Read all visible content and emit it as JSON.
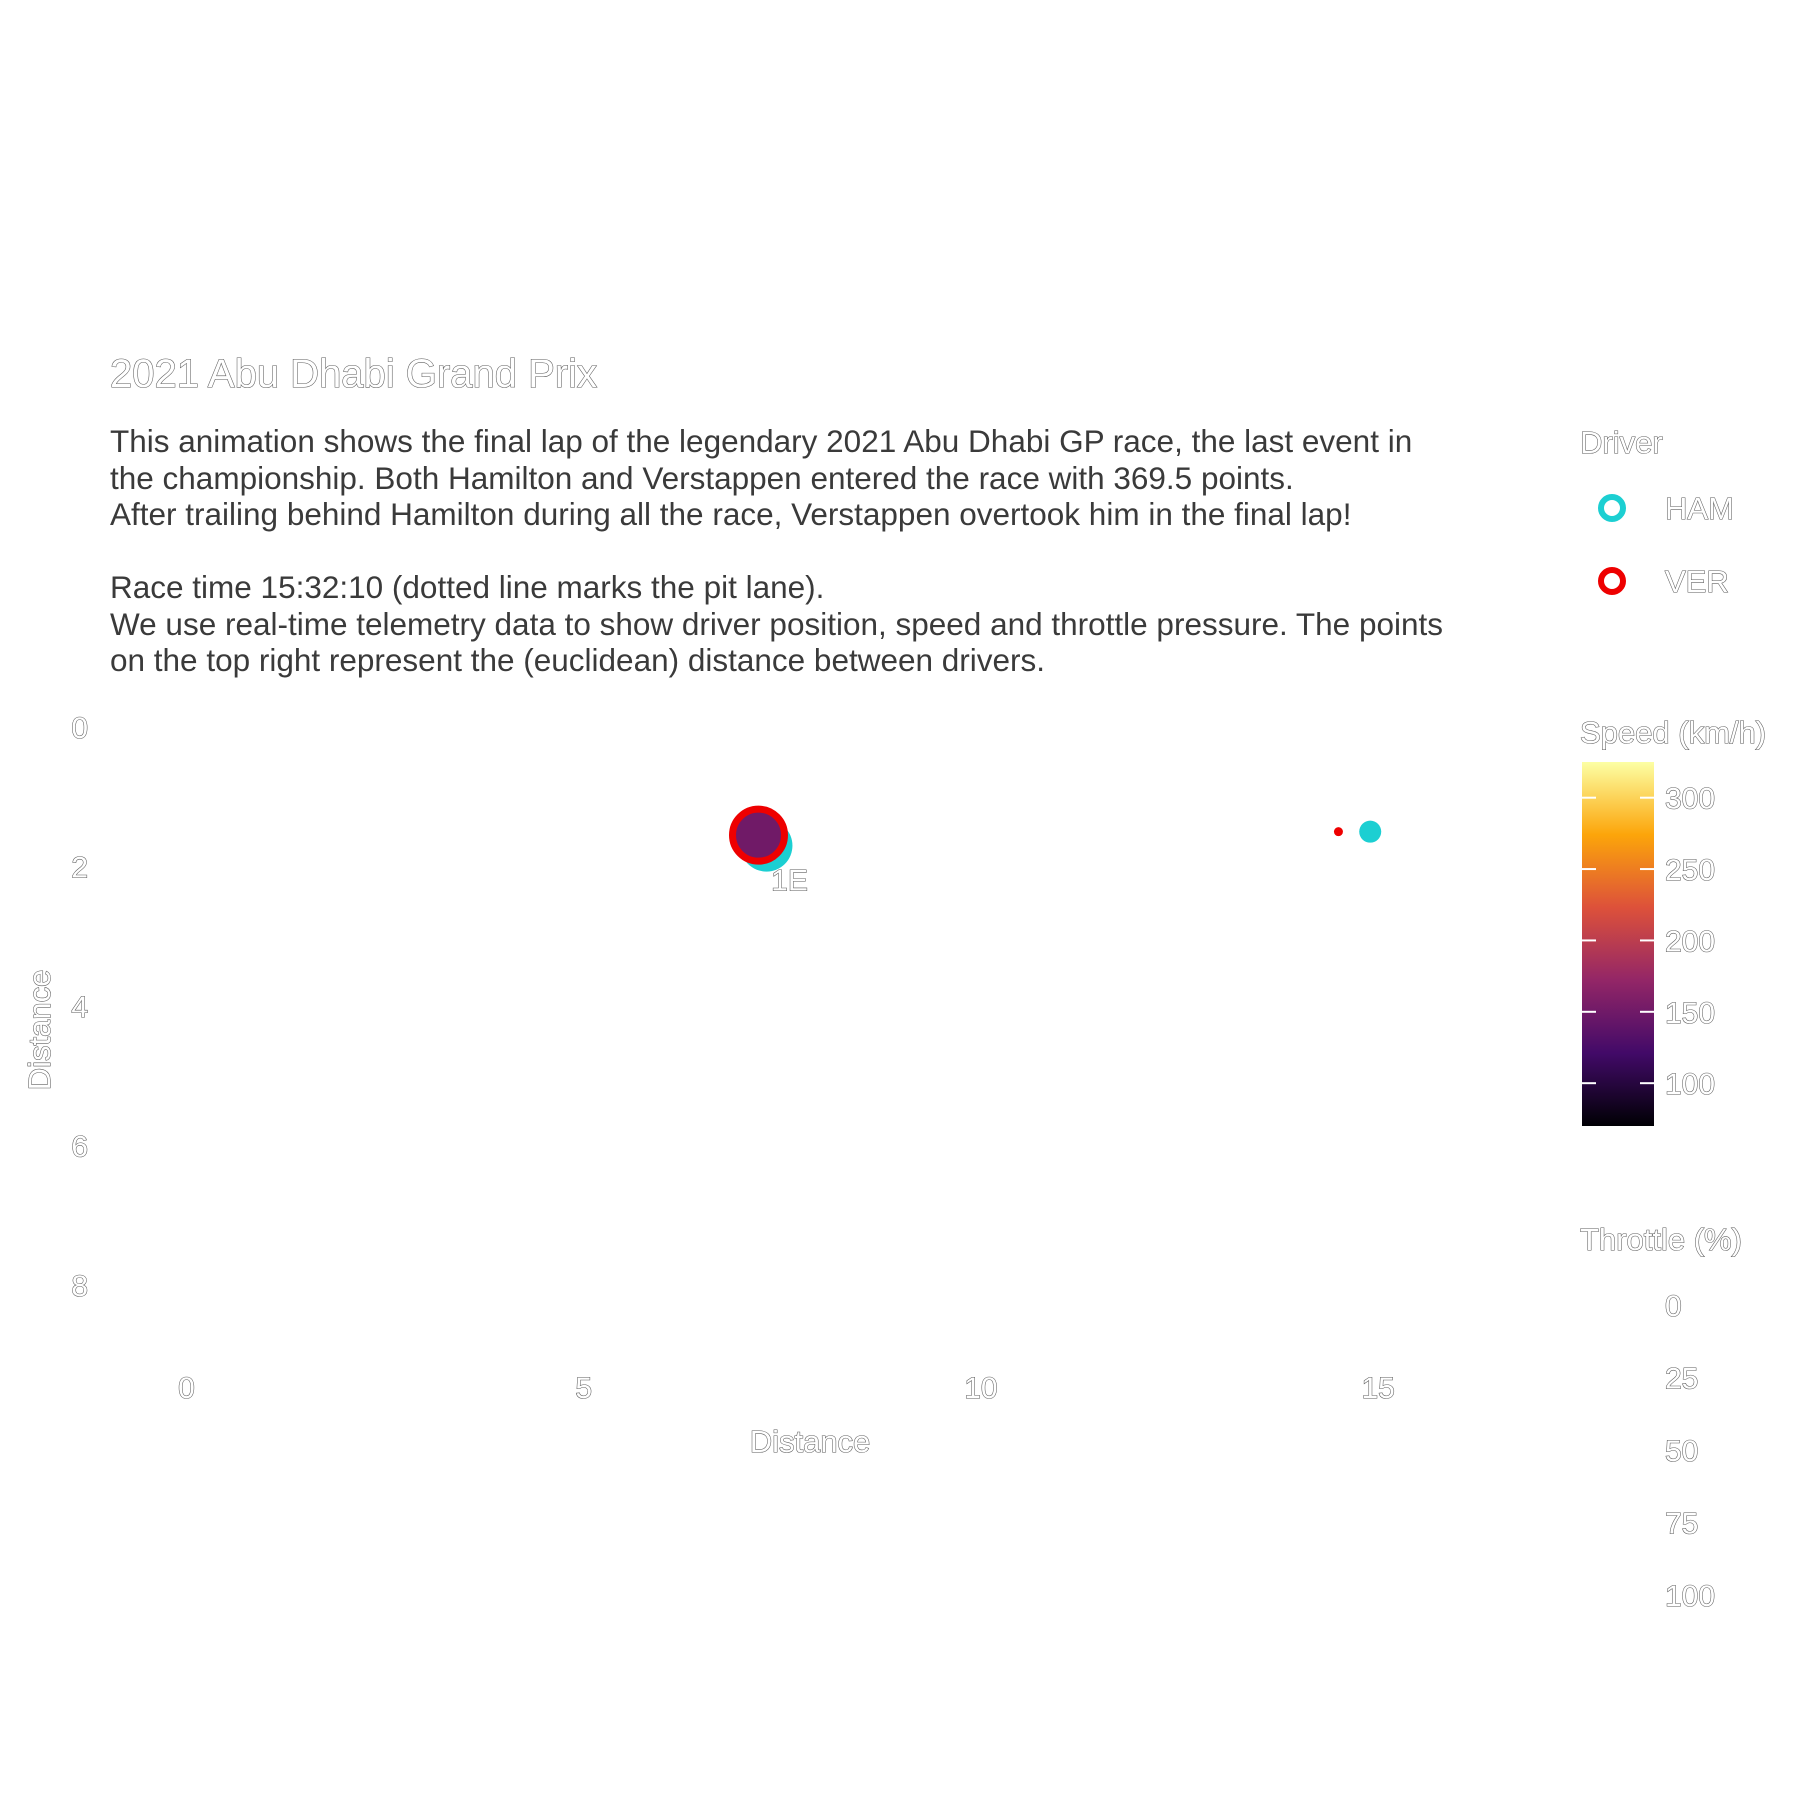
{
  "chart_data": {
    "type": "scatter",
    "title": "2021 Abu Dhabi Grand Prix",
    "subtitle_lines": [
      "This animation shows the final lap of the legendary 2021 Abu Dhabi GP race, the last event in",
      "the championship. Both Hamilton and Verstappen entered the race with 369.5 points.",
      "After trailing behind Hamilton during all the race, Verstappen overtook him in the final lap!",
      "",
      "Race time 15:32:10 (dotted line marks the pit lane).",
      "We use real-time telemetry data to show driver position, speed and throttle pressure. The points",
      "on the top right represent the (euclidean) distance between drivers."
    ],
    "xlabel": "Distance",
    "ylabel": "Distance",
    "xlim": [
      -0.9,
      17.1
    ],
    "ylim": [
      0,
      9
    ],
    "y_reversed": true,
    "x_ticks": [
      0,
      5,
      10,
      15
    ],
    "y_ticks": [
      0,
      2,
      4,
      6,
      8
    ],
    "grid": false,
    "series": [
      {
        "name": "HAM",
        "color": "#1ccfd2",
        "points": [
          {
            "x": 7.3,
            "y": 1.7,
            "size": "large"
          },
          {
            "x": 14.9,
            "y": 1.5,
            "size": "small"
          }
        ]
      },
      {
        "name": "VER",
        "color": "#ee0000",
        "points": [
          {
            "x": 7.2,
            "y": 1.55,
            "size": "large",
            "fill_speed": 150
          },
          {
            "x": 14.5,
            "y": 1.5,
            "size": "tiny"
          }
        ]
      }
    ],
    "annotation": {
      "text": "1E",
      "x": 7.8,
      "y": 2.2
    },
    "legend": {
      "placement": "right",
      "driver": {
        "title": "Driver",
        "entries": [
          {
            "label": "HAM",
            "color": "#1ccfd2"
          },
          {
            "label": "VER",
            "color": "#ee0000"
          }
        ]
      },
      "speed": {
        "title": "Speed (km/h)",
        "ticks": [
          100,
          150,
          200,
          250,
          300
        ],
        "range": [
          70,
          325
        ],
        "colors": [
          "#000004",
          "#420a68",
          "#932667",
          "#dd513a",
          "#fca50a",
          "#fcffa4"
        ]
      },
      "throttle": {
        "title": "Throttle (%)",
        "ticks": [
          0,
          25,
          50,
          75,
          100
        ]
      }
    }
  }
}
